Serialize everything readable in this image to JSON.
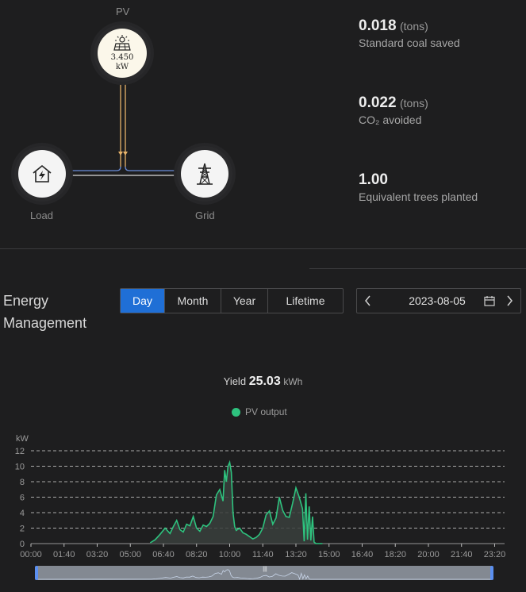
{
  "flow": {
    "pv": {
      "label": "PV",
      "value": "3.450",
      "unit": "kW"
    },
    "load": {
      "label": "Load"
    },
    "grid": {
      "label": "Grid"
    }
  },
  "stats": [
    {
      "value": "0.018",
      "unit": "(tons)",
      "desc": "Standard coal saved"
    },
    {
      "value": "0.022",
      "unit": "(tons)",
      "desc": "CO₂ avoided"
    },
    {
      "value": "1.00",
      "unit": "",
      "desc": "Equivalent trees planted"
    }
  ],
  "energy_management": {
    "title": "Energy Management",
    "tabs": [
      "Day",
      "Month",
      "Year",
      "Lifetime"
    ],
    "active_tab": "Day",
    "date": "2023-08-05"
  },
  "yield": {
    "label": "Yield",
    "value": "25.03",
    "unit": "kWh"
  },
  "colors": {
    "accent": "#1f6fd6",
    "pv_series": "#2ec27e"
  },
  "chart_data": {
    "type": "area",
    "ylabel": "kW",
    "ylim": [
      0,
      12
    ],
    "yticks": [
      0,
      2,
      4,
      6,
      8,
      10,
      12
    ],
    "xticks": [
      "00:00",
      "01:40",
      "03:20",
      "05:00",
      "06:40",
      "08:20",
      "10:00",
      "11:40",
      "13:20",
      "15:00",
      "16:40",
      "18:20",
      "20:00",
      "21:40",
      "23:20"
    ],
    "grid": true,
    "legend": "top-center",
    "series": [
      {
        "name": "PV output",
        "x": [
          "06:00",
          "06:15",
          "06:30",
          "06:45",
          "07:00",
          "07:10",
          "07:20",
          "07:30",
          "07:40",
          "07:50",
          "08:00",
          "08:10",
          "08:20",
          "08:30",
          "08:40",
          "08:50",
          "09:00",
          "09:10",
          "09:20",
          "09:30",
          "09:40",
          "09:45",
          "09:50",
          "09:55",
          "10:00",
          "10:05",
          "10:10",
          "10:15",
          "10:20",
          "10:30",
          "10:40",
          "10:50",
          "11:00",
          "11:10",
          "11:20",
          "11:30",
          "11:40",
          "11:50",
          "12:00",
          "12:10",
          "12:20",
          "12:30",
          "12:40",
          "12:50",
          "13:00",
          "13:10",
          "13:20",
          "13:30",
          "13:40",
          "13:45",
          "13:50",
          "13:55",
          "14:00",
          "14:05",
          "14:10",
          "14:15",
          "14:20",
          "14:25",
          "14:30",
          "14:35",
          "14:40"
        ],
        "values": [
          0.1,
          0.5,
          1.2,
          2.0,
          1.3,
          2.2,
          3.0,
          1.8,
          1.5,
          2.5,
          2.3,
          3.5,
          2.0,
          1.6,
          2.4,
          2.2,
          2.6,
          3.5,
          6.3,
          7.0,
          5.5,
          9.5,
          8.0,
          10.0,
          10.5,
          9.2,
          4.0,
          2.2,
          1.7,
          2.0,
          1.4,
          1.2,
          0.9,
          0.6,
          0.8,
          1.2,
          2.0,
          3.7,
          4.2,
          2.5,
          3.3,
          6.0,
          4.3,
          3.5,
          3.4,
          5.2,
          7.2,
          6.0,
          4.5,
          0.3,
          6.5,
          0.5,
          4.8,
          0.4,
          3.5,
          0.2,
          0,
          0,
          0,
          0,
          0
        ]
      }
    ]
  }
}
